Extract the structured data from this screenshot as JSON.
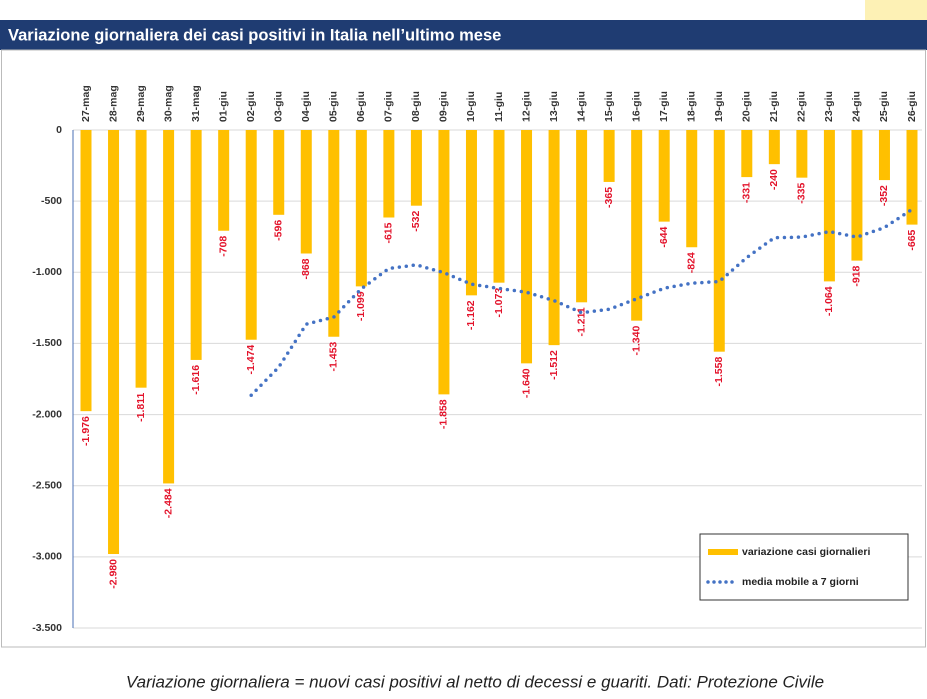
{
  "chart_data": {
    "type": "bar",
    "title": "Variazione giornaliera dei casi positivi in Italia nell’ultimo mese",
    "caption": "Variazione giornaliera = nuovi casi positivi al netto di decessi e guariti. Dati: Protezione Civile",
    "categories": [
      "27-mag",
      "28-mag",
      "29-mag",
      "30-mag",
      "31-mag",
      "01-giu",
      "02-giu",
      "03-giu",
      "04-giu",
      "05-giu",
      "06-giu",
      "07-giu",
      "08-giu",
      "09-giu",
      "10-giu",
      "11-giu",
      "12-giu",
      "13-giu",
      "14-giu",
      "15-giu",
      "16-giu",
      "17-giu",
      "18-giu",
      "19-giu",
      "20-giu",
      "21-giu",
      "22-giu",
      "23-giu",
      "24-giu",
      "25-giu",
      "26-giu"
    ],
    "series": [
      {
        "name": "variazione casi giornalieri",
        "color": "#ffc000",
        "label_color": "#e3132b",
        "values": [
          -1976,
          -2980,
          -1811,
          -2484,
          -1616,
          -708,
          -1474,
          -596,
          -868,
          -1453,
          -1099,
          -615,
          -532,
          -1858,
          -1162,
          -1073,
          -1640,
          -1512,
          -1211,
          -365,
          -1340,
          -644,
          -824,
          -1558,
          -331,
          -240,
          -335,
          -1064,
          -918,
          -352,
          -665
        ],
        "value_labels": [
          "-1.976",
          "-2.980",
          "-1.811",
          "-2.484",
          "-1.616",
          "-708",
          "-1.474",
          "-596",
          "-868",
          "-1.453",
          "-1.099",
          "-615",
          "-532",
          "-1.858",
          "-1.162",
          "-1.073",
          "-1.640",
          "-1.512",
          "-1.211",
          "-365",
          "-1.340",
          "-644",
          "-824",
          "-1.558",
          "-331",
          "-240",
          "-335",
          "-1.064",
          "-918",
          "-352",
          "-665"
        ]
      },
      {
        "name": "media mobile a 7 giorni",
        "color": "#4472c4",
        "type": "line",
        "dotted": true,
        "values": [
          null,
          null,
          null,
          null,
          null,
          null,
          -1864,
          -1667,
          -1365,
          -1314,
          -1116,
          -973,
          -948,
          -1003,
          -1084,
          -1113,
          -1140,
          -1199,
          -1284,
          -1260,
          -1186,
          -1112,
          -1077,
          -1065,
          -896,
          -757,
          -753,
          -714,
          -753,
          -685,
          -558
        ]
      }
    ],
    "ylim": [
      -3500,
      0
    ],
    "yticks": [
      0,
      -500,
      {
        "value": -1000,
        "label": "-1.000"
      },
      {
        "value": -1500,
        "label": "-1.500"
      },
      {
        "value": -2000,
        "label": "-2.000"
      },
      {
        "value": -2500,
        "label": "-2.500"
      },
      {
        "value": -3000,
        "label": "-3.000"
      },
      {
        "value": -3500,
        "label": "-3.500"
      }
    ],
    "grid": true,
    "legend": "lower right"
  }
}
